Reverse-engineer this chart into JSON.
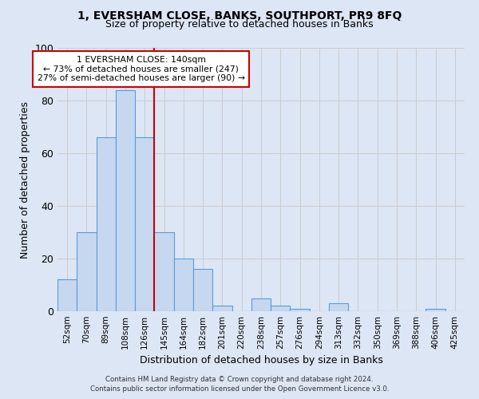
{
  "title": "1, EVERSHAM CLOSE, BANKS, SOUTHPORT, PR9 8FQ",
  "subtitle": "Size of property relative to detached houses in Banks",
  "xlabel": "Distribution of detached houses by size in Banks",
  "ylabel": "Number of detached properties",
  "bar_labels": [
    "52sqm",
    "70sqm",
    "89sqm",
    "108sqm",
    "126sqm",
    "145sqm",
    "164sqm",
    "182sqm",
    "201sqm",
    "220sqm",
    "238sqm",
    "257sqm",
    "276sqm",
    "294sqm",
    "313sqm",
    "332sqm",
    "350sqm",
    "369sqm",
    "388sqm",
    "406sqm",
    "425sqm"
  ],
  "bar_values": [
    12,
    30,
    66,
    84,
    66,
    30,
    20,
    16,
    2,
    0,
    5,
    2,
    1,
    0,
    3,
    0,
    0,
    0,
    0,
    1,
    0
  ],
  "bar_color": "#c5d8f0",
  "bar_edge_color": "#5b9bd5",
  "property_label": "1 EVERSHAM CLOSE: 140sqm",
  "annotation_line1": "← 73% of detached houses are smaller (247)",
  "annotation_line2": "27% of semi-detached houses are larger (90) →",
  "vline_color": "#cc0000",
  "annotation_box_color": "#ffffff",
  "annotation_box_edge": "#cc0000",
  "ylim": [
    0,
    100
  ],
  "yticks": [
    0,
    20,
    40,
    60,
    80,
    100
  ],
  "grid_color": "#cccccc",
  "background_color": "#dce6f5",
  "footer_line1": "Contains HM Land Registry data © Crown copyright and database right 2024.",
  "footer_line2": "Contains public sector information licensed under the Open Government Licence v3.0."
}
